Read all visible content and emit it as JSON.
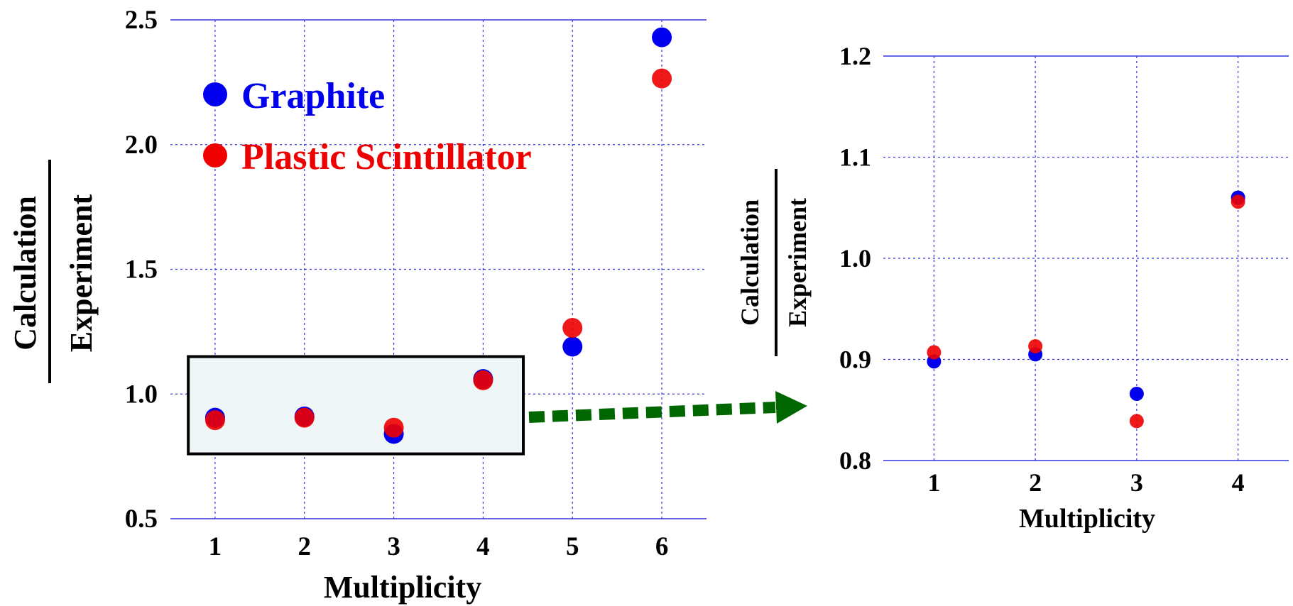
{
  "colors": {
    "graphite": "#0000ee",
    "plastic": "#ee0000",
    "grid": "#3333dd",
    "arrow": "#006600",
    "box_fill": "#eef6f7"
  },
  "chart_data": [
    {
      "type": "scatter",
      "xlabel": "Multiplicity",
      "ylabel_numerator": "Calculation",
      "ylabel_denominator": "Experiment",
      "xlim": [
        0.5,
        6.5
      ],
      "ylim": [
        0.5,
        2.5
      ],
      "x_ticks": [
        "1",
        "2",
        "3",
        "4",
        "5",
        "6"
      ],
      "y_ticks": [
        "0.5",
        "1.0",
        "1.5",
        "2.0",
        "2.5"
      ],
      "grid": true,
      "legend_position": "top-left",
      "series": [
        {
          "name": "Graphite",
          "x": [
            1,
            2,
            3,
            4,
            5,
            6
          ],
          "y": [
            0.905,
            0.91,
            0.84,
            1.06,
            1.19,
            2.43
          ]
        },
        {
          "name": "Plastic Scintillator",
          "x": [
            1,
            2,
            3,
            4,
            5,
            6
          ],
          "y": [
            0.895,
            0.905,
            0.865,
            1.055,
            1.265,
            2.265
          ]
        }
      ],
      "highlight_region": {
        "x": [
          0.7,
          4.45
        ],
        "y": [
          0.76,
          1.15
        ]
      }
    },
    {
      "type": "scatter",
      "xlabel": "Multiplicity",
      "ylabel_numerator": "Calculation",
      "ylabel_denominator": "Experiment",
      "xlim": [
        0.5,
        4.5
      ],
      "ylim": [
        0.8,
        1.2
      ],
      "x_ticks": [
        "1",
        "2",
        "3",
        "4"
      ],
      "y_ticks": [
        "0.8",
        "0.9",
        "1.0",
        "1.1",
        "1.2"
      ],
      "grid": true,
      "series": [
        {
          "x": [
            1,
            2,
            3,
            4
          ],
          "y": [
            0.898,
            0.905,
            0.866,
            1.06
          ]
        },
        {
          "x": [
            1,
            2,
            3,
            4
          ],
          "y": [
            0.907,
            0.913,
            0.839,
            1.056
          ]
        }
      ]
    }
  ]
}
